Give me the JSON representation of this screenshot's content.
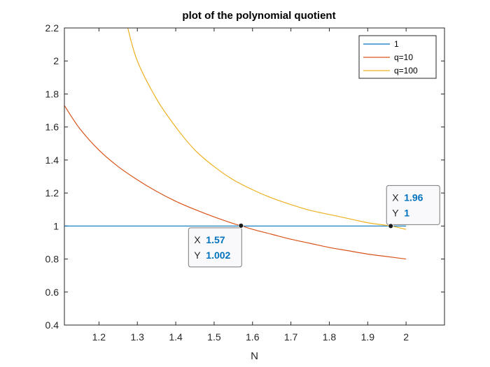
{
  "chart_data": {
    "type": "line",
    "title": "plot of the polynomial quotient",
    "xlabel": "N",
    "ylabel": "",
    "xlim": [
      1.11,
      2.1
    ],
    "ylim": [
      0.4,
      2.2
    ],
    "xticks": [
      1.2,
      1.3,
      1.4,
      1.5,
      1.6,
      1.7,
      1.8,
      1.9,
      2
    ],
    "xtick_labels": [
      "1.2",
      "1.3",
      "1.4",
      "1.5",
      "1.6",
      "1.7",
      "1.8",
      "1.9",
      "2"
    ],
    "yticks": [
      0.4,
      0.6,
      0.8,
      1,
      1.2,
      1.4,
      1.6,
      1.8,
      2,
      2.2
    ],
    "ytick_labels": [
      "0.4",
      "0.6",
      "0.8",
      "1",
      "1.2",
      "1.4",
      "1.6",
      "1.8",
      "2",
      "2.2"
    ],
    "legend_position": "top-right",
    "grid": false,
    "series": [
      {
        "name": "1",
        "color": "#0072BD",
        "x": [
          1.11,
          2.0
        ],
        "y": [
          1.0,
          1.0
        ]
      },
      {
        "name": "q=10",
        "color": "#D95319",
        "x": [
          1.11,
          1.15,
          1.2,
          1.25,
          1.3,
          1.35,
          1.4,
          1.45,
          1.5,
          1.55,
          1.57,
          1.6,
          1.65,
          1.7,
          1.75,
          1.8,
          1.85,
          1.9,
          1.95,
          2.0
        ],
        "y": [
          1.73,
          1.59,
          1.46,
          1.36,
          1.28,
          1.21,
          1.15,
          1.1,
          1.055,
          1.015,
          1.002,
          0.98,
          0.95,
          0.92,
          0.895,
          0.87,
          0.85,
          0.83,
          0.815,
          0.8
        ]
      },
      {
        "name": "q=100",
        "color": "#EDB120",
        "x": [
          1.275,
          1.3,
          1.35,
          1.4,
          1.45,
          1.5,
          1.55,
          1.6,
          1.65,
          1.7,
          1.75,
          1.8,
          1.85,
          1.9,
          1.96,
          2.0
        ],
        "y": [
          2.2,
          2.0,
          1.77,
          1.6,
          1.46,
          1.36,
          1.28,
          1.22,
          1.17,
          1.13,
          1.095,
          1.07,
          1.045,
          1.02,
          1.0,
          0.98
        ]
      }
    ],
    "annotations": [
      {
        "x": 1.57,
        "y": 1.002,
        "x_label": "X",
        "x_value": "1.57",
        "y_label": "Y",
        "y_value": "1.002",
        "placement": "below-left"
      },
      {
        "x": 1.96,
        "y": 1.0,
        "x_label": "X",
        "x_value": "1.96",
        "y_label": "Y",
        "y_value": "1",
        "placement": "above-right"
      }
    ]
  }
}
